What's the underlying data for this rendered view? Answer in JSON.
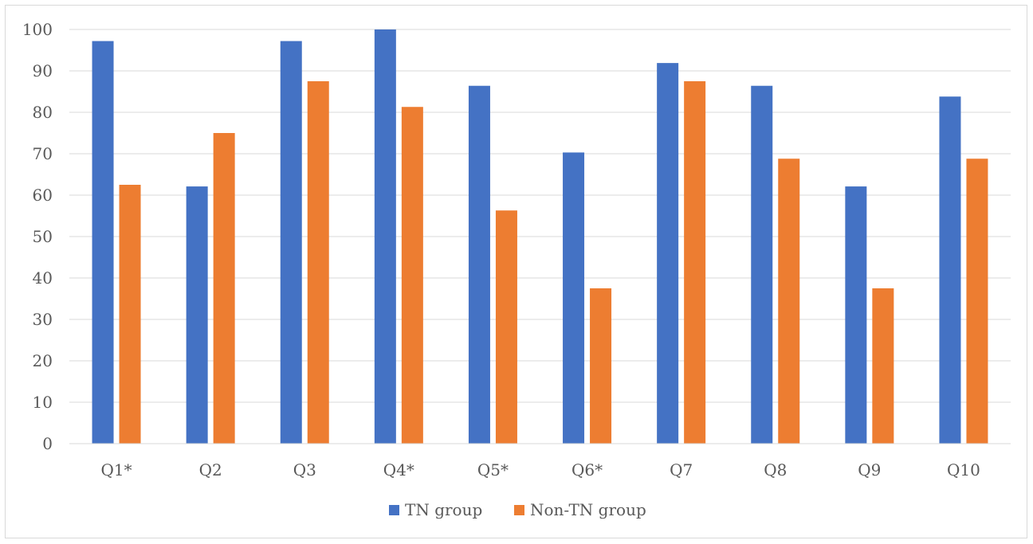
{
  "chart_data": {
    "type": "bar",
    "categories": [
      "Q1*",
      "Q2",
      "Q3",
      "Q4*",
      "Q5*",
      "Q6*",
      "Q7",
      "Q8",
      "Q9",
      "Q10"
    ],
    "series": [
      {
        "name": "TN group",
        "color": "#4472C4",
        "values": [
          97.2,
          62.1,
          97.2,
          100,
          86.4,
          70.3,
          91.9,
          86.4,
          62.1,
          83.8
        ]
      },
      {
        "name": "Non-TN group",
        "color": "#ED7D31",
        "values": [
          62.5,
          75.0,
          87.5,
          81.3,
          56.3,
          37.5,
          87.5,
          68.8,
          37.5,
          68.8
        ]
      }
    ],
    "y_ticks": [
      "0",
      "10",
      "20",
      "30",
      "40",
      "50",
      "60",
      "70",
      "80",
      "90",
      "100"
    ],
    "ylim": [
      0,
      100
    ],
    "grid": true,
    "legend_position": "bottom",
    "gridline_color": "#d9d9d9"
  }
}
